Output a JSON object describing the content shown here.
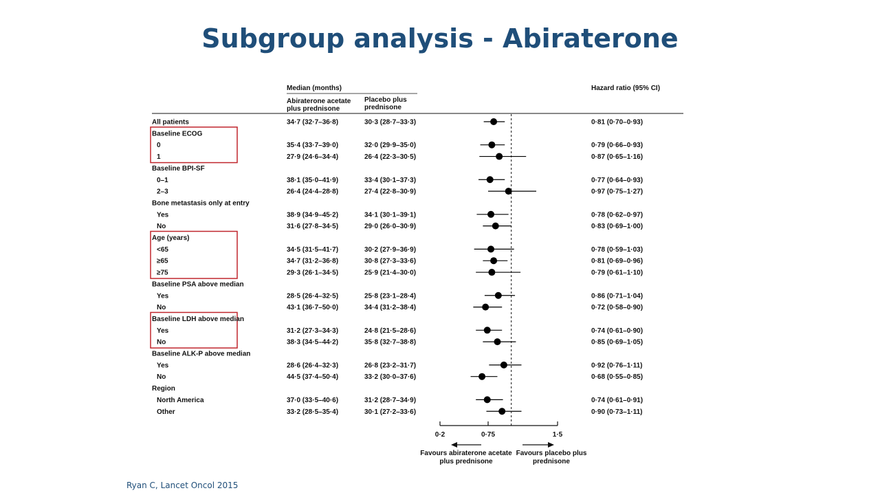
{
  "title": "Subgroup analysis - Abiraterone",
  "citation": "Ryan C, Lancet Oncol 2015",
  "colors": {
    "title": "#1f4e79",
    "highlight_box": "#c0262d",
    "marker": "#000000"
  },
  "chart_data": {
    "type": "forest",
    "title": "",
    "headers": {
      "median": "Median (months)",
      "arm1": [
        "Abiraterone acetate",
        "plus prednisone"
      ],
      "arm2": [
        "Placebo plus",
        "prednisone"
      ],
      "hr": "Hazard ratio (95% CI)"
    },
    "x_axis": {
      "ticks": [
        {
          "value": 0.2,
          "label": "0·2"
        },
        {
          "value": 0.75,
          "label": "0·75"
        },
        {
          "value": 1.5,
          "label": "1·5"
        }
      ],
      "range": [
        0.2,
        1.5
      ],
      "reference": 1.0,
      "reference_style": "dashed",
      "left_label": [
        "Favours abiraterone acetate",
        "plus prednisone"
      ],
      "right_label": [
        "Favours placebo plus",
        "prednisone"
      ]
    },
    "rows": [
      {
        "label": "All patients",
        "bold": true,
        "arm1": "34·7 (32·7–36·8)",
        "arm2": "30·3 (28·7–33·3)",
        "hr_text": "0·81 (0·70–0·93)",
        "hr": 0.81,
        "lo": 0.7,
        "hi": 0.93
      },
      {
        "label": "Baseline ECOG",
        "header": true
      },
      {
        "label": "0",
        "indent": true,
        "arm1": "35·4 (33·7–39·0)",
        "arm2": "32·0 (29·9–35·0)",
        "hr_text": "0·79 (0·66–0·93)",
        "hr": 0.79,
        "lo": 0.66,
        "hi": 0.93
      },
      {
        "label": "1",
        "indent": true,
        "arm1": "27·9 (24·6–34·4)",
        "arm2": "26·4 (22·3–30·5)",
        "hr_text": "0·87 (0·65–1·16)",
        "hr": 0.87,
        "lo": 0.65,
        "hi": 1.16
      },
      {
        "label": "Baseline BPI-SF",
        "header": true
      },
      {
        "label": "0–1",
        "indent": true,
        "arm1": "38·1 (35·0–41·9)",
        "arm2": "33·4 (30·1–37·3)",
        "hr_text": "0·77 (0·64–0·93)",
        "hr": 0.77,
        "lo": 0.64,
        "hi": 0.93
      },
      {
        "label": "2–3",
        "indent": true,
        "arm1": "26·4 (24·4–28·8)",
        "arm2": "27·4 (22·8–30·9)",
        "hr_text": "0·97 (0·75–1·27)",
        "hr": 0.97,
        "lo": 0.75,
        "hi": 1.27
      },
      {
        "label": "Bone metastasis only at entry",
        "header": true
      },
      {
        "label": "Yes",
        "indent": true,
        "arm1": "38·9 (34·9–45·2)",
        "arm2": "34·1 (30·1–39·1)",
        "hr_text": "0·78 (0·62–0·97)",
        "hr": 0.78,
        "lo": 0.62,
        "hi": 0.97
      },
      {
        "label": "No",
        "indent": true,
        "arm1": "31·6 (27·8–34·5)",
        "arm2": "29·0 (26·0–30·9)",
        "hr_text": "0·83 (0·69–1·00)",
        "hr": 0.83,
        "lo": 0.69,
        "hi": 1.0
      },
      {
        "label": "Age (years)",
        "header": true
      },
      {
        "label": "<65",
        "indent": true,
        "arm1": "34·5 (31·5–41·7)",
        "arm2": "30·2 (27·9–36·9)",
        "hr_text": "0·78 (0·59–1·03)",
        "hr": 0.78,
        "lo": 0.59,
        "hi": 1.03
      },
      {
        "label": "≥65",
        "indent": true,
        "arm1": "34·7 (31·2–36·8)",
        "arm2": "30·8 (27·3–33·6)",
        "hr_text": "0·81 (0·69–0·96)",
        "hr": 0.81,
        "lo": 0.69,
        "hi": 0.96
      },
      {
        "label": "≥75",
        "indent": true,
        "arm1": "29·3 (26·1–34·5)",
        "arm2": "25·9 (21·4–30·0)",
        "hr_text": "0·79 (0·61–1·10)",
        "hr": 0.79,
        "lo": 0.61,
        "hi": 1.1
      },
      {
        "label": "Baseline PSA above median",
        "header": true
      },
      {
        "label": "Yes",
        "indent": true,
        "arm1": "28·5 (26·4–32·5)",
        "arm2": "25·8 (23·1–28·4)",
        "hr_text": "0·86 (0·71–1·04)",
        "hr": 0.86,
        "lo": 0.71,
        "hi": 1.04
      },
      {
        "label": "No",
        "indent": true,
        "arm1": "43·1 (36·7–50·0)",
        "arm2": "34·4 (31·2–38·4)",
        "hr_text": "0·72 (0·58–0·90)",
        "hr": 0.72,
        "lo": 0.58,
        "hi": 0.9
      },
      {
        "label": "Baseline LDH above median",
        "header": true
      },
      {
        "label": "Yes",
        "indent": true,
        "arm1": "31·2 (27·3–34·3)",
        "arm2": "24·8 (21·5–28·6)",
        "hr_text": "0·74 (0·61–0·90)",
        "hr": 0.74,
        "lo": 0.61,
        "hi": 0.9
      },
      {
        "label": "No",
        "indent": true,
        "arm1": "38·3 (34·5–44·2)",
        "arm2": "35·8 (32·7–38·8)",
        "hr_text": "0·85 (0·69–1·05)",
        "hr": 0.85,
        "lo": 0.69,
        "hi": 1.05
      },
      {
        "label": "Baseline ALK-P above median",
        "header": true
      },
      {
        "label": "Yes",
        "indent": true,
        "arm1": "28·6 (26·4–32·3)",
        "arm2": "26·8 (23·2–31·7)",
        "hr_text": "0·92 (0·76–1·11)",
        "hr": 0.92,
        "lo": 0.76,
        "hi": 1.11
      },
      {
        "label": "No",
        "indent": true,
        "arm1": "44·5 (37·4–50·4)",
        "arm2": "33·2 (30·0–37·6)",
        "hr_text": "0·68 (0·55–0·85)",
        "hr": 0.68,
        "lo": 0.55,
        "hi": 0.85
      },
      {
        "label": "Region",
        "header": true
      },
      {
        "label": "North America",
        "indent": true,
        "arm1": "37·0 (33·5–40·6)",
        "arm2": "31·2 (28·7–34·9)",
        "hr_text": "0·74 (0·61–0·91)",
        "hr": 0.74,
        "lo": 0.61,
        "hi": 0.91
      },
      {
        "label": "Other",
        "indent": true,
        "arm1": "33·2 (28·5–35·4)",
        "arm2": "30·1 (27·2–33·6)",
        "hr_text": "0·90 (0·73–1·11)",
        "hr": 0.9,
        "lo": 0.73,
        "hi": 1.11
      }
    ],
    "highlighted_groups": [
      "Baseline ECOG",
      "Age (years)",
      "Baseline LDH above median"
    ]
  }
}
